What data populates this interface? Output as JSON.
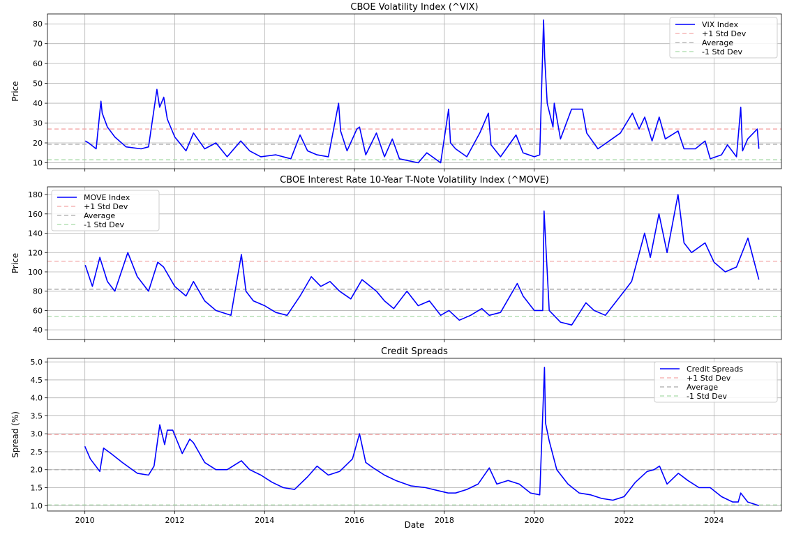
{
  "figure": {
    "xlabel": "Date",
    "x_ticks": [
      "2010",
      "2012",
      "2014",
      "2016",
      "2018",
      "2020",
      "2022",
      "2024"
    ],
    "x_range": [
      "2009-03-01",
      "2025-07-01"
    ]
  },
  "colors": {
    "series": "#0000ff",
    "plus_std": "#f4a6a6",
    "average": "#a9a9a9",
    "minus_std": "#a6d9a6",
    "grid": "#b0b0b0"
  },
  "chart_data": [
    {
      "type": "line",
      "title": "CBOE Volatility Index (^VIX)",
      "ylabel": "Price",
      "ylim": [
        7,
        85
      ],
      "y_ticks": [
        10,
        20,
        30,
        40,
        50,
        60,
        70,
        80
      ],
      "grid": true,
      "legend_position": "top-right",
      "legend": [
        "VIX Index",
        "+1 Std Dev",
        "Average",
        "-1 Std Dev"
      ],
      "reference_lines": {
        "plus_std": 27.0,
        "average": 19.3,
        "minus_std": 11.5
      },
      "series": [
        {
          "name": "VIX Index",
          "x": [
            "2010-01-04",
            "2010-02-01",
            "2010-04-01",
            "2010-05-10",
            "2010-05-20",
            "2010-07-01",
            "2010-09-01",
            "2010-12-01",
            "2011-04-01",
            "2011-06-01",
            "2011-08-08",
            "2011-08-30",
            "2011-10-03",
            "2011-11-01",
            "2012-01-01",
            "2012-04-01",
            "2012-06-01",
            "2012-09-01",
            "2012-12-01",
            "2013-03-01",
            "2013-06-20",
            "2013-09-01",
            "2013-12-01",
            "2014-04-01",
            "2014-08-01",
            "2014-10-15",
            "2014-12-15",
            "2015-03-01",
            "2015-06-01",
            "2015-08-24",
            "2015-09-10",
            "2015-11-01",
            "2016-01-20",
            "2016-02-11",
            "2016-04-01",
            "2016-06-27",
            "2016-09-01",
            "2016-11-04",
            "2017-01-01",
            "2017-06-01",
            "2017-08-10",
            "2017-12-01",
            "2018-02-05",
            "2018-02-20",
            "2018-04-01",
            "2018-07-01",
            "2018-10-15",
            "2018-12-24",
            "2019-01-15",
            "2019-04-01",
            "2019-08-05",
            "2019-10-01",
            "2020-01-01",
            "2020-02-15",
            "2020-03-16",
            "2020-03-25",
            "2020-04-15",
            "2020-06-01",
            "2020-06-11",
            "2020-08-01",
            "2020-10-30",
            "2021-01-27",
            "2021-03-01",
            "2021-06-01",
            "2021-09-01",
            "2021-12-01",
            "2022-03-07",
            "2022-05-01",
            "2022-06-16",
            "2022-08-15",
            "2022-10-12",
            "2022-12-01",
            "2023-03-13",
            "2023-05-01",
            "2023-08-01",
            "2023-10-20",
            "2023-12-01",
            "2024-03-01",
            "2024-04-19",
            "2024-07-01",
            "2024-08-05",
            "2024-08-20",
            "2024-10-01",
            "2024-12-18",
            "2024-12-31"
          ],
          "values": [
            21,
            20,
            17,
            41,
            35,
            28,
            23,
            18,
            17,
            18,
            47,
            38,
            43,
            32,
            23,
            16,
            25,
            17,
            20,
            13,
            21,
            16,
            13,
            14,
            12,
            24,
            16,
            14,
            13,
            40,
            26,
            16,
            27,
            28,
            14,
            25,
            13,
            22,
            12,
            10,
            15,
            10,
            37,
            20,
            17,
            13,
            25,
            35,
            19,
            13,
            24,
            15,
            13,
            14,
            82,
            63,
            40,
            28,
            40,
            22,
            37,
            37,
            25,
            17,
            21,
            25,
            35,
            27,
            33,
            21,
            33,
            22,
            26,
            17,
            17,
            21,
            12,
            14,
            19,
            13,
            38,
            16,
            22,
            27,
            17
          ]
        }
      ]
    },
    {
      "type": "line",
      "title": "CBOE Interest Rate 10-Year T-Note Volatility Index (^MOVE)",
      "ylabel": "Price",
      "ylim": [
        30,
        188
      ],
      "y_ticks": [
        40,
        60,
        80,
        100,
        120,
        140,
        160,
        180
      ],
      "grid": true,
      "legend_position": "top-left",
      "legend": [
        "MOVE Index",
        "+1 Std Dev",
        "Average",
        "-1 Std Dev"
      ],
      "reference_lines": {
        "plus_std": 111.0,
        "average": 82.0,
        "minus_std": 54.0
      },
      "series": [
        {
          "name": "MOVE Index",
          "x": [
            "2010-01-04",
            "2010-03-01",
            "2010-05-01",
            "2010-07-01",
            "2010-09-01",
            "2010-12-15",
            "2011-03-01",
            "2011-06-01",
            "2011-08-15",
            "2011-10-01",
            "2012-01-01",
            "2012-04-01",
            "2012-06-01",
            "2012-09-01",
            "2012-12-01",
            "2013-04-01",
            "2013-06-25",
            "2013-08-01",
            "2013-10-01",
            "2014-01-01",
            "2014-04-01",
            "2014-07-01",
            "2014-10-15",
            "2015-01-15",
            "2015-04-01",
            "2015-06-15",
            "2015-09-01",
            "2015-12-01",
            "2016-03-01",
            "2016-06-27",
            "2016-09-01",
            "2016-11-15",
            "2017-03-01",
            "2017-06-01",
            "2017-09-01",
            "2017-12-01",
            "2018-02-08",
            "2018-05-01",
            "2018-08-01",
            "2018-11-01",
            "2019-01-01",
            "2019-04-01",
            "2019-08-15",
            "2019-10-01",
            "2020-01-01",
            "2020-03-09",
            "2020-03-20",
            "2020-05-01",
            "2020-08-01",
            "2020-11-01",
            "2021-02-25",
            "2021-05-01",
            "2021-08-01",
            "2021-11-01",
            "2022-01-01",
            "2022-03-01",
            "2022-06-15",
            "2022-08-01",
            "2022-10-10",
            "2022-12-15",
            "2023-03-13",
            "2023-05-01",
            "2023-07-01",
            "2023-10-20",
            "2024-01-01",
            "2024-04-01",
            "2024-07-01",
            "2024-10-03",
            "2024-12-31"
          ],
          "values": [
            107,
            85,
            115,
            90,
            80,
            120,
            95,
            80,
            110,
            105,
            85,
            75,
            90,
            70,
            60,
            55,
            118,
            80,
            70,
            65,
            58,
            55,
            75,
            95,
            85,
            90,
            80,
            72,
            92,
            80,
            70,
            62,
            80,
            65,
            70,
            55,
            60,
            50,
            55,
            62,
            55,
            58,
            88,
            75,
            60,
            60,
            163,
            60,
            48,
            45,
            68,
            60,
            55,
            70,
            80,
            90,
            140,
            115,
            160,
            120,
            180,
            130,
            120,
            130,
            110,
            100,
            105,
            135,
            92
          ]
        }
      ]
    },
    {
      "type": "line",
      "title": "Credit Spreads",
      "ylabel": "Spread (%)",
      "ylim": [
        0.85,
        5.1
      ],
      "y_ticks": [
        "1.0",
        "1.5",
        "2.0",
        "2.5",
        "3.0",
        "3.5",
        "4.0",
        "4.5",
        "5.0"
      ],
      "grid": true,
      "legend_position": "top-right",
      "legend": [
        "Credit Spreads",
        "+1 Std Dev",
        "Average",
        "-1 Std Dev"
      ],
      "reference_lines": {
        "plus_std": 2.98,
        "average": 2.0,
        "minus_std": 1.02
      },
      "series": [
        {
          "name": "Credit Spreads",
          "x": [
            "2009-12-31",
            "2010-02-15",
            "2010-05-01",
            "2010-06-01",
            "2010-08-01",
            "2010-11-01",
            "2011-03-01",
            "2011-06-01",
            "2011-07-15",
            "2011-09-01",
            "2011-10-10",
            "2011-11-01",
            "2011-12-15",
            "2012-03-01",
            "2012-05-01",
            "2012-06-01",
            "2012-09-01",
            "2012-12-01",
            "2013-03-01",
            "2013-06-25",
            "2013-09-01",
            "2013-12-01",
            "2014-03-01",
            "2014-06-01",
            "2014-09-01",
            "2014-12-15",
            "2015-03-01",
            "2015-06-01",
            "2015-09-01",
            "2015-12-15",
            "2016-02-11",
            "2016-04-01",
            "2016-06-01",
            "2016-09-01",
            "2016-12-01",
            "2017-04-01",
            "2017-08-01",
            "2017-12-01",
            "2018-02-01",
            "2018-04-01",
            "2018-07-01",
            "2018-10-01",
            "2018-12-31",
            "2019-03-01",
            "2019-06-01",
            "2019-09-01",
            "2019-12-01",
            "2020-02-15",
            "2020-03-23",
            "2020-04-01",
            "2020-05-01",
            "2020-07-01",
            "2020-10-01",
            "2021-01-01",
            "2021-04-01",
            "2021-07-01",
            "2021-10-01",
            "2022-01-01",
            "2022-04-01",
            "2022-07-05",
            "2022-09-01",
            "2022-10-15",
            "2022-12-15",
            "2023-03-15",
            "2023-06-01",
            "2023-09-01",
            "2023-12-01",
            "2024-03-01",
            "2024-06-01",
            "2024-07-15",
            "2024-08-05",
            "2024-10-01",
            "2024-12-31"
          ],
          "values": [
            2.65,
            2.3,
            1.95,
            2.6,
            2.45,
            2.2,
            1.9,
            1.85,
            2.1,
            3.25,
            2.7,
            3.1,
            3.1,
            2.45,
            2.85,
            2.75,
            2.2,
            2.0,
            2.0,
            2.25,
            2.0,
            1.85,
            1.65,
            1.5,
            1.45,
            1.8,
            2.1,
            1.85,
            1.95,
            2.3,
            3.0,
            2.2,
            2.05,
            1.85,
            1.7,
            1.55,
            1.5,
            1.4,
            1.35,
            1.35,
            1.45,
            1.6,
            2.05,
            1.6,
            1.7,
            1.6,
            1.35,
            1.3,
            4.85,
            3.3,
            2.8,
            2.0,
            1.6,
            1.35,
            1.3,
            1.2,
            1.15,
            1.25,
            1.65,
            1.95,
            2.0,
            2.1,
            1.6,
            1.9,
            1.7,
            1.5,
            1.5,
            1.25,
            1.1,
            1.1,
            1.35,
            1.1,
            1.0
          ]
        }
      ]
    }
  ]
}
